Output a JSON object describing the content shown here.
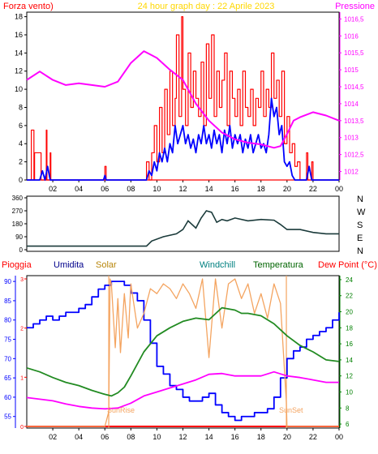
{
  "header": {
    "left_label": "Forza vento)",
    "title": "24 hour graph day : 22 Aprile 2023",
    "right_label": "Pressione"
  },
  "middle": {
    "dir_labels": [
      "N",
      "W",
      "S",
      "E",
      "N"
    ]
  },
  "bottom_header": {
    "labels": [
      "Pioggia",
      "Umidita",
      "Solar",
      "Windchill",
      "Temperatura",
      "Dew Point (°C)"
    ]
  },
  "annotations": {
    "sunrise": "SunRise",
    "sunset": "SunSet"
  },
  "colors": {
    "red": "#ff0000",
    "magenta": "#ff00ff",
    "blue": "#0000ff",
    "darkblue": "#000080",
    "orange": "#f4a460",
    "green": "#228b22",
    "teal": "#006400",
    "yellow": "#ffd700",
    "dirline": "#1a3a3a",
    "rain": "#ff0000"
  },
  "chart_data": [
    {
      "type": "line",
      "title": "24 hour graph day : 22 Aprile 2023",
      "x_ticks": [
        "02",
        "04",
        "06",
        "08",
        "10",
        "12",
        "14",
        "16",
        "18",
        "20",
        "22",
        "00"
      ],
      "x_range_hours": [
        0,
        24
      ],
      "y_left": {
        "label": "Forza vento)",
        "ticks": [
          0,
          2,
          4,
          6,
          8,
          10,
          12,
          14,
          16,
          18
        ],
        "range": [
          0,
          18.5
        ]
      },
      "y_right": {
        "label": "Pressione",
        "ticks": [
          1012,
          1012.5,
          1013,
          1013.5,
          1014,
          1014.5,
          1015,
          1015.5,
          1016,
          1016.5
        ],
        "tick_labels": [
          "1012",
          "1012,5",
          "1013",
          "1013,5",
          "1014",
          "1014,5",
          "1015",
          "1015,5",
          "1016",
          "1016,5"
        ],
        "range": [
          1011.75,
          1016.7
        ]
      },
      "series": [
        {
          "color": "red",
          "axis": "left",
          "style": "gust",
          "x": [
            0,
            0.3,
            0.35,
            0.55,
            0.6,
            1.1,
            1.15,
            1.5,
            1.55,
            1.8,
            1.85,
            5.9,
            6.0,
            6.1,
            6.2,
            9.0,
            9.2,
            9.4,
            9.6,
            9.8,
            10.0,
            10.2,
            10.4,
            10.6,
            10.8,
            11.0,
            11.2,
            11.4,
            11.5,
            11.7,
            11.9,
            12.0,
            12.2,
            12.4,
            12.6,
            12.8,
            13.0,
            13.2,
            13.4,
            13.6,
            13.8,
            14.0,
            14.2,
            14.4,
            14.6,
            14.8,
            15.0,
            15.2,
            15.4,
            15.6,
            15.8,
            16.0,
            16.2,
            16.4,
            16.6,
            16.8,
            17.0,
            17.2,
            17.4,
            17.6,
            17.8,
            18.0,
            18.2,
            18.4,
            18.6,
            18.8,
            19.0,
            19.2,
            19.4,
            19.6,
            19.8,
            20.0,
            20.2,
            20.4,
            20.6,
            20.8,
            21.0,
            21.5,
            21.6,
            21.9,
            22.0,
            22.2,
            24.0
          ],
          "y": [
            0,
            0,
            5.5,
            0,
            3,
            0,
            0,
            5.5,
            0,
            3,
            0,
            0,
            1.5,
            0,
            0,
            0,
            2,
            0,
            3,
            6,
            2,
            8,
            3,
            10,
            5,
            12,
            6,
            9,
            16,
            7,
            18,
            10,
            6,
            14,
            8,
            12,
            9,
            7,
            13,
            6,
            15,
            9,
            16,
            7,
            12,
            8,
            11,
            14,
            6,
            12,
            9,
            7,
            10,
            6,
            12,
            8,
            7,
            10,
            6,
            9,
            8,
            12,
            7,
            10,
            8,
            14,
            9,
            11,
            7,
            12,
            4,
            7,
            3,
            4,
            1.5,
            2,
            0,
            3,
            0,
            2,
            0,
            0,
            0
          ]
        },
        {
          "color": "blue",
          "axis": "left",
          "style": "mean",
          "x": [
            0,
            1.0,
            1.2,
            1.4,
            1.6,
            1.8,
            5.9,
            6.0,
            6.1,
            9.2,
            9.4,
            9.6,
            9.8,
            10.0,
            10.2,
            10.4,
            10.6,
            10.8,
            11.0,
            11.2,
            11.4,
            11.6,
            11.8,
            12.0,
            12.2,
            12.4,
            12.6,
            12.8,
            13.0,
            13.2,
            13.4,
            13.6,
            13.8,
            14.0,
            14.2,
            14.4,
            14.6,
            14.8,
            15.0,
            15.2,
            15.4,
            15.6,
            15.8,
            16.0,
            16.2,
            16.4,
            16.6,
            16.8,
            17.0,
            17.2,
            17.4,
            17.6,
            17.8,
            18.0,
            18.2,
            18.4,
            18.6,
            18.8,
            19.0,
            19.2,
            19.4,
            19.6,
            19.8,
            20.0,
            20.2,
            20.4,
            20.6,
            21.5,
            21.7,
            21.9,
            24.0
          ],
          "y": [
            0,
            0,
            1,
            0,
            1.5,
            0,
            0,
            0.5,
            0,
            0,
            1,
            0.5,
            2,
            1,
            3,
            2,
            3.5,
            2,
            4,
            3,
            6,
            4,
            5,
            6,
            4,
            5,
            3.5,
            4.5,
            3,
            5,
            4,
            6,
            4,
            5,
            3.5,
            5.5,
            4,
            5,
            3,
            5.5,
            4,
            6,
            3.5,
            5,
            4,
            5,
            3,
            4.5,
            3.5,
            5,
            3,
            4,
            5,
            3.5,
            4,
            3,
            5,
            9,
            7,
            8,
            5,
            6,
            2,
            1.5,
            2,
            0.5,
            0,
            0,
            1.5,
            0,
            0
          ]
        },
        {
          "color": "magenta",
          "axis": "right",
          "style": "pressure",
          "x": [
            0,
            1.0,
            2.0,
            3.0,
            4.0,
            5.0,
            6.0,
            7.0,
            8.0,
            9.0,
            9.5,
            10.0,
            11.0,
            12.0,
            13.0,
            14.0,
            15.0,
            16.0,
            17.0,
            18.0,
            19.0,
            19.5,
            20.0,
            20.5,
            21.0,
            22.0,
            23.0,
            24.0
          ],
          "y": [
            1014.7,
            1014.95,
            1014.7,
            1014.55,
            1014.6,
            1014.55,
            1014.5,
            1014.65,
            1015.2,
            1015.55,
            1015.45,
            1015.35,
            1015.0,
            1014.7,
            1014.0,
            1013.5,
            1013.15,
            1012.95,
            1012.85,
            1012.8,
            1012.7,
            1012.75,
            1013.1,
            1013.5,
            1013.6,
            1013.75,
            1013.65,
            1013.5
          ]
        }
      ]
    },
    {
      "type": "line",
      "x_range_hours": [
        0,
        24
      ],
      "y": {
        "ticks": [
          0,
          90,
          180,
          270,
          360
        ],
        "range": [
          0,
          360
        ]
      },
      "series": [
        {
          "color": "dirline",
          "name": "",
          "x": [
            0,
            2,
            4,
            6,
            8,
            9.2,
            9.6,
            10.5,
            11.5,
            12.0,
            12.4,
            13.0,
            13.4,
            13.8,
            14.2,
            14.6,
            15.0,
            15.4,
            16.0,
            17.0,
            18.0,
            19.0,
            19.5,
            20.0,
            21.0,
            22.0,
            23.0,
            24.0
          ],
          "y": [
            25,
            25,
            25,
            25,
            25,
            25,
            60,
            90,
            110,
            140,
            200,
            150,
            220,
            270,
            260,
            190,
            210,
            200,
            220,
            200,
            210,
            205,
            175,
            140,
            140,
            120,
            110,
            110
          ]
        }
      ]
    },
    {
      "type": "line",
      "x_range_hours": [
        0,
        24
      ],
      "y_left": {
        "label": "Umidita",
        "ticks": [
          55,
          60,
          65,
          70,
          75,
          80,
          85,
          90
        ],
        "range": [
          52,
          91.5
        ]
      },
      "y_rain": {
        "label": "Pioggia",
        "ticks": [
          0,
          1,
          2,
          3
        ],
        "range": [
          0,
          3
        ]
      },
      "y_right": {
        "label": "Dew Point (°C)",
        "ticks": [
          6,
          8,
          10,
          12,
          14,
          16,
          18,
          20,
          22,
          24
        ],
        "range": [
          5.5,
          24.5
        ]
      },
      "sunrise_h": 6.3,
      "sunset_h": 19.95,
      "series": [
        {
          "name": "Umidita",
          "color": "blue",
          "axis": "left",
          "x": [
            0,
            0.5,
            1.0,
            1.5,
            2.0,
            2.5,
            3.0,
            3.5,
            4.0,
            4.5,
            5.0,
            5.5,
            6.0,
            6.5,
            7.0,
            7.5,
            8.0,
            8.5,
            9.0,
            9.5,
            10.0,
            10.5,
            11.0,
            11.5,
            12.0,
            12.5,
            13.0,
            13.5,
            14.0,
            14.5,
            15.0,
            15.5,
            16.0,
            16.5,
            17.0,
            17.5,
            18.0,
            18.5,
            19.0,
            19.5,
            20.0,
            20.5,
            21.0,
            21.5,
            22.0,
            22.5,
            23.0,
            23.5,
            24.0
          ],
          "y": [
            78,
            79,
            80,
            81,
            80,
            81,
            82,
            82,
            83,
            84,
            86,
            88,
            89,
            90,
            90,
            89,
            87,
            85,
            80,
            74,
            68,
            66,
            63,
            62,
            60,
            59,
            59,
            60,
            61,
            58,
            56,
            55,
            54,
            55,
            55,
            56,
            56,
            57,
            60,
            65,
            70,
            72,
            73,
            75,
            76,
            77,
            78,
            80,
            82
          ]
        },
        {
          "name": "Solar",
          "color": "orange",
          "axis": "rain",
          "x": [
            0,
            6.0,
            6.3,
            6.4,
            6.5,
            6.8,
            7.0,
            7.2,
            7.5,
            7.8,
            8.0,
            8.5,
            9.0,
            9.5,
            10.0,
            10.5,
            11.0,
            11.5,
            12.0,
            12.5,
            13.0,
            13.5,
            14.0,
            14.5,
            15.0,
            15.5,
            16.0,
            16.5,
            17.0,
            17.5,
            18.0,
            18.5,
            19.0,
            19.5,
            19.95,
            20.0,
            24.0
          ],
          "y": [
            0,
            0,
            0.3,
            3,
            2.9,
            1.6,
            2.6,
            1.5,
            2.7,
            1.8,
            2.9,
            2.0,
            2.3,
            2.8,
            2.7,
            2.9,
            2.8,
            2.6,
            2.9,
            2.7,
            2.4,
            3.0,
            1.4,
            3.0,
            2.0,
            2.9,
            3.0,
            2.6,
            2.9,
            2.3,
            2.7,
            2.2,
            2.9,
            2.5,
            0.5,
            0,
            0
          ]
        },
        {
          "name": "Temperatura",
          "color": "green",
          "axis": "right",
          "x": [
            0,
            1.0,
            2.0,
            3.0,
            4.0,
            5.0,
            6.0,
            6.5,
            7.0,
            7.5,
            8.0,
            9.0,
            10.0,
            11.0,
            12.0,
            13.0,
            14.0,
            15.0,
            16.0,
            16.5,
            17.0,
            18.0,
            19.0,
            20.0,
            21.0,
            22.0,
            23.0,
            24.0
          ],
          "y": [
            13,
            12.5,
            11.8,
            11.2,
            10.8,
            10.2,
            9.7,
            9.5,
            9.9,
            10.6,
            12.0,
            15.0,
            17.0,
            18.0,
            18.8,
            19.2,
            19.0,
            20.5,
            20.2,
            19.8,
            19.8,
            19.5,
            18.5,
            17.0,
            15.8,
            15.0,
            14.0,
            13.8
          ]
        },
        {
          "name": "Dew Point (°C)",
          "color": "magenta",
          "axis": "right",
          "x": [
            0,
            1.0,
            2.0,
            3.0,
            4.0,
            5.0,
            6.0,
            7.0,
            8.0,
            9.0,
            10.0,
            11.0,
            12.0,
            13.0,
            14.0,
            15.0,
            16.0,
            17.0,
            18.0,
            19.0,
            20.0,
            21.0,
            22.0,
            23.0,
            24.0
          ],
          "y": [
            9.3,
            9.1,
            8.9,
            8.5,
            8.2,
            8.0,
            7.9,
            8.0,
            8.6,
            9.5,
            10.0,
            10.5,
            11.0,
            11.5,
            12.2,
            12.3,
            12.0,
            12.0,
            12.0,
            12.5,
            12.0,
            11.8,
            11.5,
            11.2,
            11.2
          ]
        }
      ]
    }
  ]
}
